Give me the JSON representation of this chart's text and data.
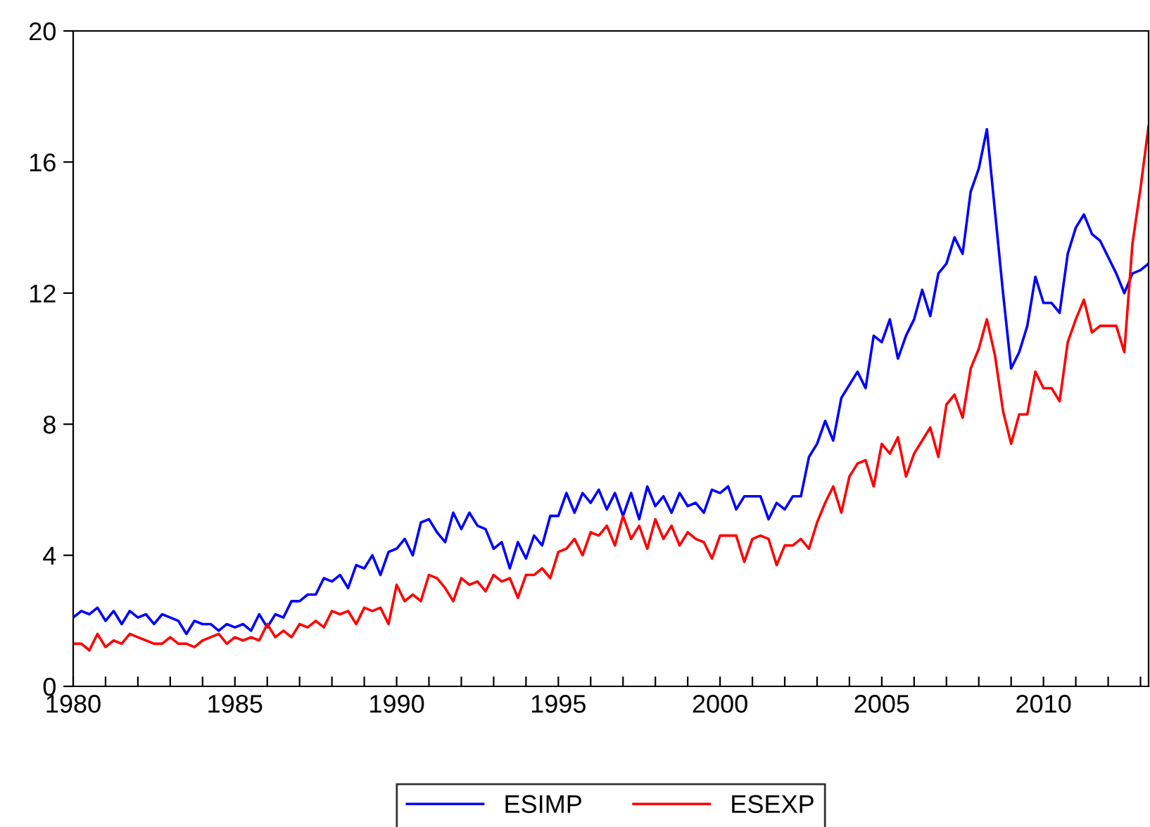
{
  "chart_data": {
    "type": "line",
    "x": [
      1980,
      1980.25,
      1980.5,
      1980.75,
      1981,
      1981.25,
      1981.5,
      1981.75,
      1982,
      1982.25,
      1982.5,
      1982.75,
      1983,
      1983.25,
      1983.5,
      1983.75,
      1984,
      1984.25,
      1984.5,
      1984.75,
      1985,
      1985.25,
      1985.5,
      1985.75,
      1986,
      1986.25,
      1986.5,
      1986.75,
      1987,
      1987.25,
      1987.5,
      1987.75,
      1988,
      1988.25,
      1988.5,
      1988.75,
      1989,
      1989.25,
      1989.5,
      1989.75,
      1990,
      1990.25,
      1990.5,
      1990.75,
      1991,
      1991.25,
      1991.5,
      1991.75,
      1992,
      1992.25,
      1992.5,
      1992.75,
      1993,
      1993.25,
      1993.5,
      1993.75,
      1994,
      1994.25,
      1994.5,
      1994.75,
      1995,
      1995.25,
      1995.5,
      1995.75,
      1996,
      1996.25,
      1996.5,
      1996.75,
      1997,
      1997.25,
      1997.5,
      1997.75,
      1998,
      1998.25,
      1998.5,
      1998.75,
      1999,
      1999.25,
      1999.5,
      1999.75,
      2000,
      2000.25,
      2000.5,
      2000.75,
      2001,
      2001.25,
      2001.5,
      2001.75,
      2002,
      2002.25,
      2002.5,
      2002.75,
      2003,
      2003.25,
      2003.5,
      2003.75,
      2004,
      2004.25,
      2004.5,
      2004.75,
      2005,
      2005.25,
      2005.5,
      2005.75,
      2006,
      2006.25,
      2006.5,
      2006.75,
      2007,
      2007.25,
      2007.5,
      2007.75,
      2008,
      2008.25,
      2008.5,
      2008.75,
      2009,
      2009.25,
      2009.5,
      2009.75,
      2010,
      2010.25,
      2010.5,
      2010.75,
      2011,
      2011.25,
      2011.5,
      2011.75,
      2012,
      2012.25,
      2012.5,
      2012.75,
      2013,
      2013.25
    ],
    "series": [
      {
        "name": "ESIMP",
        "color": "#0000ff",
        "values": [
          2.1,
          2.3,
          2.2,
          2.4,
          2.0,
          2.3,
          1.9,
          2.3,
          2.1,
          2.2,
          1.9,
          2.2,
          2.1,
          2.0,
          1.6,
          2.0,
          1.9,
          1.9,
          1.7,
          1.9,
          1.8,
          1.9,
          1.7,
          2.2,
          1.8,
          2.2,
          2.1,
          2.6,
          2.6,
          2.8,
          2.8,
          3.3,
          3.2,
          3.4,
          3.0,
          3.7,
          3.6,
          4.0,
          3.4,
          4.1,
          4.2,
          4.5,
          4.0,
          5.0,
          5.1,
          4.7,
          4.4,
          5.3,
          4.8,
          5.3,
          4.9,
          4.8,
          4.2,
          4.4,
          3.6,
          4.4,
          3.9,
          4.6,
          4.3,
          5.2,
          5.2,
          5.9,
          5.3,
          5.9,
          5.6,
          6.0,
          5.4,
          5.9,
          5.2,
          5.9,
          5.1,
          6.1,
          5.5,
          5.8,
          5.3,
          5.9,
          5.5,
          5.6,
          5.3,
          6.0,
          5.9,
          6.1,
          5.4,
          5.8,
          5.8,
          5.8,
          5.1,
          5.6,
          5.4,
          5.8,
          5.8,
          7.0,
          7.4,
          8.1,
          7.5,
          8.8,
          9.2,
          9.6,
          9.1,
          10.7,
          10.5,
          11.2,
          10.0,
          10.7,
          11.2,
          12.1,
          11.3,
          12.6,
          12.9,
          13.7,
          13.2,
          15.1,
          15.8,
          17.0,
          14.5,
          12.0,
          9.7,
          10.2,
          11.0,
          12.5,
          11.7,
          11.7,
          11.4,
          13.2,
          14.0,
          14.4,
          13.8,
          13.6,
          13.1,
          12.6,
          12.0,
          12.6,
          12.7,
          12.9
        ]
      },
      {
        "name": "ESEXP",
        "color": "#ff0000",
        "values": [
          1.3,
          1.3,
          1.1,
          1.6,
          1.2,
          1.4,
          1.3,
          1.6,
          1.5,
          1.4,
          1.3,
          1.3,
          1.5,
          1.3,
          1.3,
          1.2,
          1.4,
          1.5,
          1.6,
          1.3,
          1.5,
          1.4,
          1.5,
          1.4,
          1.9,
          1.5,
          1.7,
          1.5,
          1.9,
          1.8,
          2.0,
          1.8,
          2.3,
          2.2,
          2.3,
          1.9,
          2.4,
          2.3,
          2.4,
          1.9,
          3.1,
          2.6,
          2.8,
          2.6,
          3.4,
          3.3,
          3.0,
          2.6,
          3.3,
          3.1,
          3.2,
          2.9,
          3.4,
          3.2,
          3.3,
          2.7,
          3.4,
          3.4,
          3.6,
          3.3,
          4.1,
          4.2,
          4.5,
          4.0,
          4.7,
          4.6,
          4.9,
          4.3,
          5.2,
          4.5,
          4.9,
          4.2,
          5.1,
          4.5,
          4.9,
          4.3,
          4.7,
          4.5,
          4.4,
          3.9,
          4.6,
          4.6,
          4.6,
          3.8,
          4.5,
          4.6,
          4.5,
          3.7,
          4.3,
          4.3,
          4.5,
          4.2,
          5.0,
          5.6,
          6.1,
          5.3,
          6.4,
          6.8,
          6.9,
          6.1,
          7.4,
          7.1,
          7.6,
          6.4,
          7.1,
          7.5,
          7.9,
          7.0,
          8.6,
          8.9,
          8.2,
          9.7,
          10.3,
          11.2,
          10.1,
          8.4,
          7.4,
          8.3,
          8.3,
          9.6,
          9.1,
          9.1,
          8.7,
          10.5,
          11.2,
          11.8,
          10.8,
          11.0,
          11.0,
          11.0,
          10.2,
          13.5,
          15.2,
          17.1
        ]
      }
    ],
    "xlim": [
      1980,
      2013.25
    ],
    "xticks": [
      1980,
      {
        "value": 1981,
        "label": null
      },
      {
        "value": 1982,
        "label": null
      },
      {
        "value": 1983,
        "label": null
      },
      {
        "value": 1984,
        "label": null
      },
      1985,
      {
        "value": 1986,
        "label": null
      },
      {
        "value": 1987,
        "label": null
      },
      {
        "value": 1988,
        "label": null
      },
      {
        "value": 1989,
        "label": null
      },
      1990,
      {
        "value": 1991,
        "label": null
      },
      {
        "value": 1992,
        "label": null
      },
      {
        "value": 1993,
        "label": null
      },
      {
        "value": 1994,
        "label": null
      },
      1995,
      {
        "value": 1996,
        "label": null
      },
      {
        "value": 1997,
        "label": null
      },
      {
        "value": 1998,
        "label": null
      },
      {
        "value": 1999,
        "label": null
      },
      2000,
      {
        "value": 2001,
        "label": null
      },
      {
        "value": 2002,
        "label": null
      },
      {
        "value": 2003,
        "label": null
      },
      {
        "value": 2004,
        "label": null
      },
      2005,
      {
        "value": 2006,
        "label": null
      },
      {
        "value": 2007,
        "label": null
      },
      {
        "value": 2008,
        "label": null
      },
      {
        "value": 2009,
        "label": null
      },
      2010,
      {
        "value": 2011,
        "label": null
      },
      {
        "value": 2012,
        "label": null
      },
      {
        "value": 2013,
        "label": null
      }
    ],
    "ylim": [
      0,
      20
    ],
    "yticks": [
      0,
      4,
      8,
      12,
      16,
      20
    ],
    "grid": false,
    "legend": "bottom",
    "line_style": "solid",
    "marker": "none"
  }
}
